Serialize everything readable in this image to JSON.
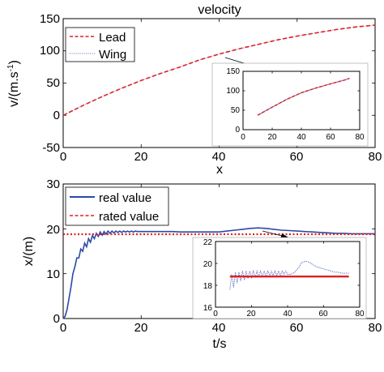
{
  "chart_data": [
    {
      "type": "line",
      "title": "velocity",
      "xlabel": "x",
      "ylabel": "v/(m.s",
      "ylabel_sup": "-1",
      "ylabel_end": ")",
      "xlim": [
        0,
        80
      ],
      "ylim": [
        -50,
        150
      ],
      "xticks": [
        "0",
        "20",
        "40",
        "60",
        "80"
      ],
      "yticks": [
        "-50",
        "0",
        "50",
        "100",
        "150"
      ],
      "legend_position": "top-left",
      "series": [
        {
          "name": "Lead",
          "color": "#e02020",
          "style": "dashed",
          "x": [
            0,
            5,
            10,
            15,
            20,
            25,
            30,
            35,
            40,
            45,
            50,
            55,
            60,
            65,
            70,
            75,
            80
          ],
          "y": [
            0,
            15,
            29,
            42,
            54,
            65,
            75,
            86,
            95,
            103,
            110,
            117,
            123,
            128,
            133,
            137,
            140
          ]
        },
        {
          "name": "Wing",
          "color": "#7d8ccf",
          "style": "dotted",
          "x": [
            0,
            5,
            10,
            15,
            20,
            25,
            30,
            35,
            40,
            45,
            50,
            55,
            60,
            65,
            70,
            75,
            80
          ],
          "y": [
            0,
            15,
            29,
            42,
            54,
            65,
            75,
            86,
            95,
            103,
            110,
            117,
            123,
            128,
            133,
            137,
            140
          ]
        }
      ],
      "inset": {
        "xlim": [
          0,
          80
        ],
        "ylim": [
          0,
          150
        ],
        "xticks": [
          "0",
          "20",
          "40",
          "60",
          "80"
        ],
        "yticks": [
          "0",
          "50",
          "100",
          "150"
        ],
        "series": [
          {
            "x": [
              10,
              20,
              30,
              40,
              50,
              60,
              70,
              73
            ],
            "y": [
              37,
              58,
              78,
              95,
              107,
              118,
              128,
              132
            ]
          }
        ]
      }
    },
    {
      "type": "line",
      "title": "",
      "xlabel": "t/s",
      "ylabel": "x/(m)",
      "xlim": [
        0,
        80
      ],
      "ylim": [
        0,
        30
      ],
      "xticks": [
        "0",
        "20",
        "40",
        "60",
        "80"
      ],
      "yticks": [
        "0",
        "10",
        "20",
        "30"
      ],
      "legend_position": "top-left",
      "series": [
        {
          "name": "real value",
          "color": "#2b4aa8",
          "style": "solid",
          "x": [
            0,
            0.5,
            1,
            1.5,
            2,
            2.5,
            3,
            3.5,
            4,
            4.5,
            5,
            5.5,
            6,
            6.5,
            7,
            7.5,
            8,
            8.5,
            9,
            9.5,
            10,
            10.5,
            11,
            11.5,
            12,
            12.5,
            13,
            13.5,
            14,
            14.5,
            15,
            15.5,
            16,
            16.5,
            17,
            17.5,
            18,
            18.5,
            19,
            20,
            22,
            24,
            26,
            28,
            30,
            32,
            34,
            36,
            38,
            40,
            42,
            44,
            46,
            48,
            50,
            52,
            54,
            56,
            58,
            60,
            62,
            64,
            66,
            68,
            70,
            72,
            74,
            76,
            78,
            80
          ],
          "y": [
            0,
            0.5,
            2,
            4.5,
            7,
            10,
            11.5,
            13.5,
            13.5,
            15.5,
            15,
            16.8,
            16,
            17.8,
            17,
            18.5,
            17.8,
            19,
            18.3,
            19.3,
            18.6,
            19.4,
            18.8,
            19.5,
            19,
            19.5,
            19.1,
            19.5,
            19.2,
            19.5,
            19.2,
            19.5,
            19.3,
            19.5,
            19.3,
            19.5,
            19.3,
            19.5,
            19.4,
            19.4,
            19.4,
            19.4,
            19.4,
            19.4,
            19.3,
            19.3,
            19.3,
            19.3,
            19.3,
            19.3,
            19.5,
            19.7,
            19.9,
            20.1,
            20.2,
            20.1,
            19.9,
            19.7,
            19.6,
            19.5,
            19.4,
            19.3,
            19.2,
            19.1,
            19.0,
            19.0,
            18.9,
            18.9,
            18.9,
            18.9
          ]
        },
        {
          "name": "rated value",
          "color": "#e02020",
          "style": "dashed",
          "x": [
            0,
            80
          ],
          "y": [
            18.8,
            18.8
          ]
        }
      ],
      "inset": {
        "xlim": [
          0,
          80
        ],
        "ylim": [
          16,
          22
        ],
        "xticks": [
          "0",
          "20",
          "40",
          "60",
          "80"
        ],
        "yticks": [
          "16",
          "18",
          "20",
          "22"
        ],
        "series": [
          {
            "x": [
              8,
              9,
              10,
              11,
              12,
              13,
              14,
              15,
              16,
              17,
              18,
              19,
              20,
              21,
              22,
              23,
              24,
              25,
              26,
              27,
              28,
              29,
              30,
              31,
              32,
              33,
              34,
              35,
              36,
              37,
              38,
              39,
              40,
              42,
              44,
              46,
              48,
              50,
              52,
              54,
              56,
              58,
              60,
              62,
              64,
              66,
              68,
              70,
              72,
              74
            ],
            "y": [
              17.6,
              19.0,
              17.8,
              19.2,
              18.2,
              19.2,
              18.4,
              19.3,
              18.5,
              19.3,
              18.6,
              19.3,
              18.7,
              19.3,
              18.7,
              19.3,
              18.8,
              19.3,
              18.8,
              19.3,
              18.8,
              19.3,
              18.9,
              19.3,
              18.9,
              19.3,
              18.9,
              19.3,
              18.9,
              19.3,
              19.0,
              19.3,
              19.0,
              19.0,
              19.2,
              19.6,
              20.1,
              20.2,
              20.1,
              19.9,
              19.7,
              19.6,
              19.5,
              19.4,
              19.3,
              19.2,
              19.2,
              19.1,
              19.1,
              19.1
            ]
          },
          {
            "x": [
              8,
              74
            ],
            "y": [
              18.8,
              18.8
            ]
          }
        ]
      }
    }
  ]
}
